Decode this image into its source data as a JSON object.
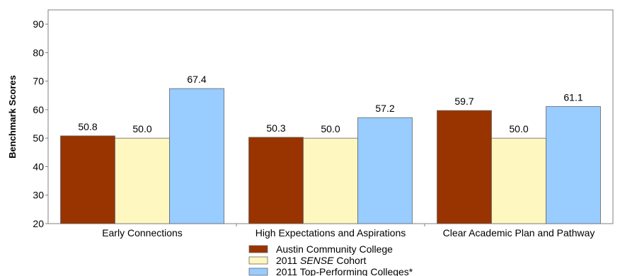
{
  "chart_data": {
    "type": "bar",
    "ylabel": "Benchmark Scores",
    "ylim": [
      20,
      95
    ],
    "yticks": [
      20,
      30,
      40,
      50,
      60,
      70,
      80,
      90
    ],
    "categories": [
      "Early Connections",
      "High Expectations and Aspirations",
      "Clear Academic Plan and Pathway"
    ],
    "series": [
      {
        "name": "Austin Community College",
        "color": "#993300",
        "values": [
          50.8,
          50.3,
          59.7
        ],
        "labels": [
          "50.8",
          "50.3",
          "59.7"
        ]
      },
      {
        "name_parts": [
          "2011 ",
          "SENSE",
          " Cohort"
        ],
        "color": "#FFF7C0",
        "values": [
          50.0,
          50.0,
          50.0
        ],
        "labels": [
          "50.0",
          "50.0",
          "50.0"
        ]
      },
      {
        "name": "2011 Top-Performing Colleges*",
        "color": "#99CCFF",
        "values": [
          67.4,
          57.2,
          61.1
        ],
        "labels": [
          "67.4",
          "57.2",
          "61.1"
        ]
      }
    ],
    "grid": false,
    "legend_position": "bottom-center"
  }
}
